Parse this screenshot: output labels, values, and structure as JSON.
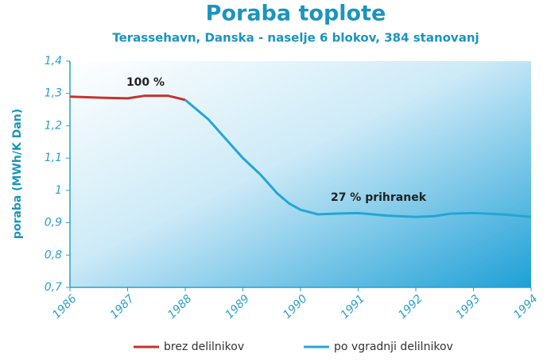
{
  "chart_data": {
    "type": "line",
    "title": "Poraba toplote",
    "subtitle": "Terassehavn, Danska - naselje 6 blokov, 384 stanovanj",
    "y_label": "poraba (MWh/K Dan)",
    "annotations": [
      "100 %",
      "27 % prihranek"
    ],
    "xlim": [
      1986,
      1994
    ],
    "xticks": [
      1986,
      1987,
      1988,
      1989,
      1990,
      1991,
      1992,
      1993,
      1994
    ],
    "ylim": [
      0.7,
      1.4
    ],
    "yticks": [
      {
        "value": 0.7,
        "label": "0,7"
      },
      {
        "value": 0.8,
        "label": "0,8"
      },
      {
        "value": 0.9,
        "label": "0,9"
      },
      1,
      {
        "value": 1.1,
        "label": "1,1"
      },
      {
        "value": 1.2,
        "label": "1,2"
      },
      {
        "value": 1.3,
        "label": "1,3"
      },
      {
        "value": 1.4,
        "label": "1,4"
      }
    ],
    "series": [
      {
        "name": "brez delilnikov",
        "color": "#c8322d",
        "x": [
          1986,
          1986.5,
          1987,
          1987.3,
          1987.7,
          1988
        ],
        "values": [
          1.29,
          1.287,
          1.285,
          1.293,
          1.293,
          1.28
        ]
      },
      {
        "name": "po vgradnji delilnikov",
        "color": "#23a6d5",
        "x": [
          1988,
          1988.4,
          1988.7,
          1989,
          1989.3,
          1989.6,
          1989.8,
          1990,
          1990.3,
          1990.6,
          1991,
          1991.5,
          1992,
          1992.3,
          1992.6,
          1993,
          1993.5,
          1994
        ],
        "values": [
          1.28,
          1.22,
          1.16,
          1.1,
          1.05,
          0.99,
          0.96,
          0.94,
          0.926,
          0.928,
          0.93,
          0.922,
          0.918,
          0.92,
          0.928,
          0.93,
          0.926,
          0.918
        ]
      }
    ]
  }
}
